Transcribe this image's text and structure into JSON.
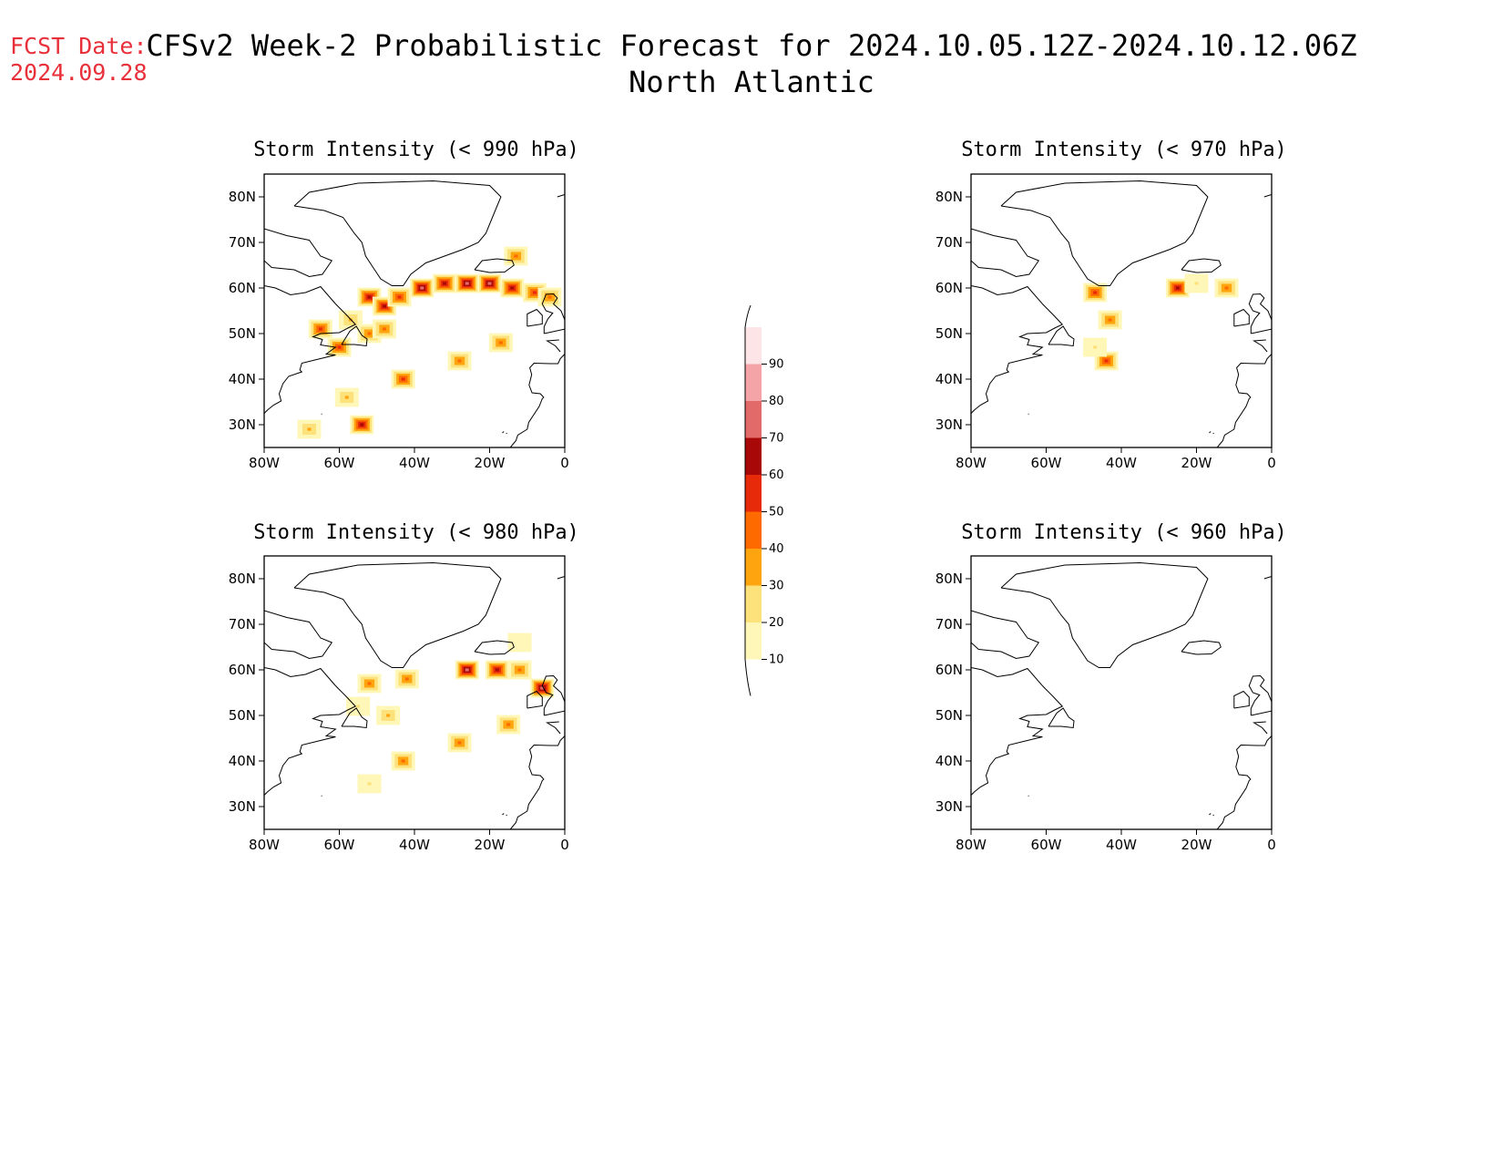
{
  "header": {
    "fcst_label": "FCST Date:",
    "fcst_date": "2024.09.28",
    "title": "CFSv2 Week-2 Probabilistic Forecast for 2024.10.05.12Z-2024.10.12.06Z",
    "subtitle": "North Atlantic"
  },
  "axes": {
    "lat_labels": [
      "80N",
      "70N",
      "60N",
      "50N",
      "40N",
      "30N"
    ],
    "lon_labels": [
      "80W",
      "60W",
      "40W",
      "20W",
      "0"
    ]
  },
  "colorbar": {
    "levels": [
      "10",
      "20",
      "30",
      "40",
      "50",
      "60",
      "70",
      "80",
      "90"
    ],
    "colors": [
      "#fff7b8",
      "#fde17a",
      "#fea40e",
      "#fe6a00",
      "#e62a0a",
      "#a80808",
      "#e26a68",
      "#f4a4a6",
      "#fde4e6"
    ]
  },
  "panels": [
    {
      "id": "p990",
      "title": "Storm Intensity (< 990 hPa)"
    },
    {
      "id": "p970",
      "title": "Storm Intensity (< 970 hPa)"
    },
    {
      "id": "p980",
      "title": "Storm Intensity (< 980 hPa)"
    },
    {
      "id": "p960",
      "title": "Storm Intensity (< 960 hPa)"
    }
  ],
  "chart_data": {
    "type": "heatmap",
    "units": "probability (%)",
    "map_extent": {
      "lon": [
        -80,
        0
      ],
      "lat": [
        25,
        85
      ]
    },
    "fields": {
      "p990": [
        {
          "lon": -52,
          "lat": 58,
          "p": 65
        },
        {
          "lon": -48,
          "lat": 56,
          "p": 60
        },
        {
          "lon": -44,
          "lat": 58,
          "p": 55
        },
        {
          "lon": -38,
          "lat": 60,
          "p": 70
        },
        {
          "lon": -32,
          "lat": 61,
          "p": 65
        },
        {
          "lon": -26,
          "lat": 61,
          "p": 75
        },
        {
          "lon": -20,
          "lat": 61,
          "p": 70
        },
        {
          "lon": -14,
          "lat": 60,
          "p": 60
        },
        {
          "lon": -8,
          "lat": 59,
          "p": 55
        },
        {
          "lon": -4,
          "lat": 58,
          "p": 45
        },
        {
          "lon": -57,
          "lat": 53,
          "p": 35
        },
        {
          "lon": -52,
          "lat": 50,
          "p": 45
        },
        {
          "lon": -48,
          "lat": 51,
          "p": 40
        },
        {
          "lon": -65,
          "lat": 51,
          "p": 50
        },
        {
          "lon": -60,
          "lat": 47,
          "p": 55
        },
        {
          "lon": -17,
          "lat": 48,
          "p": 45
        },
        {
          "lon": -43,
          "lat": 40,
          "p": 55
        },
        {
          "lon": -54,
          "lat": 30,
          "p": 60
        },
        {
          "lon": -68,
          "lat": 29,
          "p": 35
        },
        {
          "lon": -58,
          "lat": 36,
          "p": 30
        },
        {
          "lon": -28,
          "lat": 44,
          "p": 40
        },
        {
          "lon": -13,
          "lat": 67,
          "p": 40
        }
      ],
      "p970": [
        {
          "lon": -47,
          "lat": 59,
          "p": 50
        },
        {
          "lon": -25,
          "lat": 60,
          "p": 65
        },
        {
          "lon": -20,
          "lat": 61,
          "p": 25
        },
        {
          "lon": -12,
          "lat": 60,
          "p": 45
        },
        {
          "lon": -43,
          "lat": 53,
          "p": 45
        },
        {
          "lon": -44,
          "lat": 44,
          "p": 55
        },
        {
          "lon": -47,
          "lat": 47,
          "p": 20
        }
      ],
      "p980": [
        {
          "lon": -52,
          "lat": 57,
          "p": 40
        },
        {
          "lon": -42,
          "lat": 58,
          "p": 45
        },
        {
          "lon": -55,
          "lat": 52,
          "p": 20
        },
        {
          "lon": -47,
          "lat": 50,
          "p": 30
        },
        {
          "lon": -26,
          "lat": 60,
          "p": 70
        },
        {
          "lon": -18,
          "lat": 60,
          "p": 65
        },
        {
          "lon": -12,
          "lat": 60,
          "p": 45
        },
        {
          "lon": -6,
          "lat": 56,
          "p": 70
        },
        {
          "lon": -15,
          "lat": 48,
          "p": 40
        },
        {
          "lon": -43,
          "lat": 40,
          "p": 45
        },
        {
          "lon": -28,
          "lat": 44,
          "p": 40
        },
        {
          "lon": -52,
          "lat": 35,
          "p": 20
        },
        {
          "lon": -12,
          "lat": 66,
          "p": 15
        }
      ],
      "p960": []
    }
  }
}
